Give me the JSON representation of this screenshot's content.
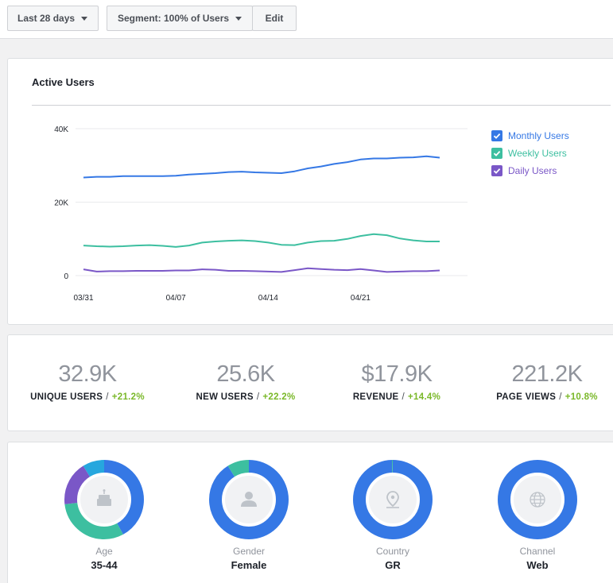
{
  "toolbar": {
    "date_range": "Last 28 days",
    "segment": "Segment: 100% of Users",
    "edit": "Edit"
  },
  "active_users": {
    "title": "Active Users",
    "legend": [
      {
        "label": "Monthly Users",
        "color": "#3578e5"
      },
      {
        "label": "Weekly Users",
        "color": "#3dbfa0"
      },
      {
        "label": "Daily Users",
        "color": "#7a57c7"
      }
    ]
  },
  "chart_data": {
    "type": "line",
    "title": "Active Users",
    "x_ticks": [
      "03/31",
      "04/07",
      "04/14",
      "04/21"
    ],
    "y_ticks": [
      "40K",
      "20K",
      "0"
    ],
    "ylim": [
      0,
      40000
    ],
    "x": [
      "03/31",
      "04/01",
      "04/02",
      "04/03",
      "04/04",
      "04/05",
      "04/06",
      "04/07",
      "04/08",
      "04/09",
      "04/10",
      "04/11",
      "04/12",
      "04/13",
      "04/14",
      "04/15",
      "04/16",
      "04/17",
      "04/18",
      "04/19",
      "04/20",
      "04/21",
      "04/22",
      "04/23",
      "04/24",
      "04/25",
      "04/26",
      "04/27"
    ],
    "series": [
      {
        "name": "Monthly Users",
        "color": "#3578e5",
        "values": [
          26700,
          26900,
          26900,
          27100,
          27100,
          27100,
          27100,
          27200,
          27500,
          27700,
          27900,
          28200,
          28300,
          28100,
          28000,
          27900,
          28400,
          29200,
          29700,
          30400,
          30900,
          31600,
          31900,
          31900,
          32100,
          32200,
          32500,
          32100
        ]
      },
      {
        "name": "Weekly Users",
        "color": "#3dbfa0",
        "values": [
          8200,
          8000,
          7900,
          8000,
          8200,
          8300,
          8100,
          7800,
          8200,
          9000,
          9300,
          9500,
          9600,
          9400,
          9000,
          8400,
          8300,
          9000,
          9400,
          9500,
          10000,
          10800,
          11300,
          11000,
          10100,
          9600,
          9300,
          9300
        ]
      },
      {
        "name": "Daily Users",
        "color": "#7a57c7",
        "values": [
          1700,
          1100,
          1200,
          1200,
          1300,
          1300,
          1300,
          1400,
          1400,
          1700,
          1600,
          1300,
          1300,
          1200,
          1100,
          1000,
          1500,
          2000,
          1800,
          1600,
          1500,
          1800,
          1400,
          1000,
          1100,
          1200,
          1200,
          1400
        ]
      }
    ]
  },
  "metrics": [
    {
      "value": "32.9K",
      "label": "UNIQUE USERS",
      "change": "+21.2%"
    },
    {
      "value": "25.6K",
      "label": "NEW USERS",
      "change": "+22.2%"
    },
    {
      "value": "$17.9K",
      "label": "REVENUE",
      "change": "+14.4%"
    },
    {
      "value": "221.2K",
      "label": "PAGE VIEWS",
      "change": "+10.8%"
    }
  ],
  "demographics": [
    {
      "label": "Age",
      "value": "35-44",
      "icon": "cake-icon",
      "segments": [
        {
          "fraction": 0.42,
          "color": "#3578e5"
        },
        {
          "fraction": 0.31,
          "color": "#3dbfa0"
        },
        {
          "fraction": 0.18,
          "color": "#7a57c7"
        },
        {
          "fraction": 0.09,
          "color": "#26a7de"
        }
      ]
    },
    {
      "label": "Gender",
      "value": "Female",
      "icon": "person-icon",
      "segments": [
        {
          "fraction": 0.91,
          "color": "#3578e5"
        },
        {
          "fraction": 0.09,
          "color": "#3dbfa0"
        }
      ]
    },
    {
      "label": "Country",
      "value": "GR",
      "icon": "location-pin-icon",
      "segments": [
        {
          "fraction": 0.995,
          "color": "#3578e5"
        },
        {
          "fraction": 0.005,
          "color": "#3dbfa0"
        }
      ]
    },
    {
      "label": "Channel",
      "value": "Web",
      "icon": "globe-icon",
      "segments": [
        {
          "fraction": 1.0,
          "color": "#3578e5"
        }
      ]
    }
  ]
}
